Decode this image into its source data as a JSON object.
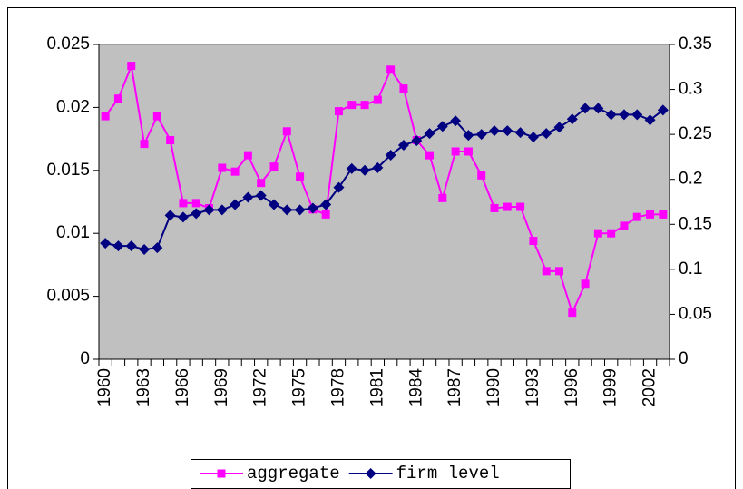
{
  "chart_data": {
    "type": "line",
    "categories": [
      "1960",
      null,
      null,
      "1963",
      null,
      null,
      "1966",
      null,
      null,
      "1969",
      null,
      null,
      "1972",
      null,
      null,
      "1975",
      null,
      null,
      "1978",
      null,
      null,
      "1981",
      null,
      null,
      "1984",
      null,
      null,
      "1987",
      null,
      null,
      "1990",
      null,
      null,
      "1993",
      null,
      null,
      "1996",
      null,
      null,
      "1999",
      null,
      null,
      "2002",
      null
    ],
    "series": [
      {
        "name": "aggregate",
        "color": "#ff00ff",
        "marker": "square",
        "values": [
          0.0193,
          0.0207,
          0.0233,
          0.0171,
          0.0193,
          0.0174,
          0.0124,
          0.0124,
          0.012,
          0.0152,
          0.0149,
          0.0162,
          0.014,
          0.0153,
          0.0181,
          0.0145,
          0.0119,
          0.0115,
          0.0197,
          0.0202,
          0.0202,
          0.0206,
          0.023,
          0.0215,
          0.0174,
          0.0162,
          0.0128,
          0.0165,
          0.0165,
          0.0146,
          0.012,
          0.0121,
          0.0121,
          0.0094,
          0.007,
          0.007,
          0.0037,
          0.006,
          0.01,
          0.01,
          0.0106,
          0.0113,
          0.0115,
          0.0115
        ]
      },
      {
        "name": "firm level",
        "color": "#000080",
        "marker": "diamond",
        "axis": "y2",
        "values": [
          0.129,
          0.126,
          0.126,
          0.122,
          0.124,
          0.16,
          0.158,
          0.162,
          0.166,
          0.166,
          0.172,
          0.18,
          0.182,
          0.172,
          0.166,
          0.166,
          0.168,
          0.172,
          0.191,
          0.212,
          0.21,
          0.213,
          0.227,
          0.238,
          0.243,
          0.251,
          0.259,
          0.265,
          0.249,
          0.25,
          0.254,
          0.254,
          0.252,
          0.247,
          0.251,
          0.258,
          0.267,
          0.279,
          0.279,
          0.272,
          0.272,
          0.272,
          0.266,
          0.277
        ]
      }
    ],
    "ylim": [
      0,
      0.025
    ],
    "yticks": [
      0,
      0.005,
      0.01,
      0.015,
      0.02,
      0.025
    ],
    "y2lim": [
      0,
      0.35
    ],
    "y2ticks": [
      0,
      0.05,
      0.1,
      0.15,
      0.2,
      0.25,
      0.3,
      0.35
    ],
    "plot_background": "#c0c0c0",
    "legend": "bottom"
  }
}
